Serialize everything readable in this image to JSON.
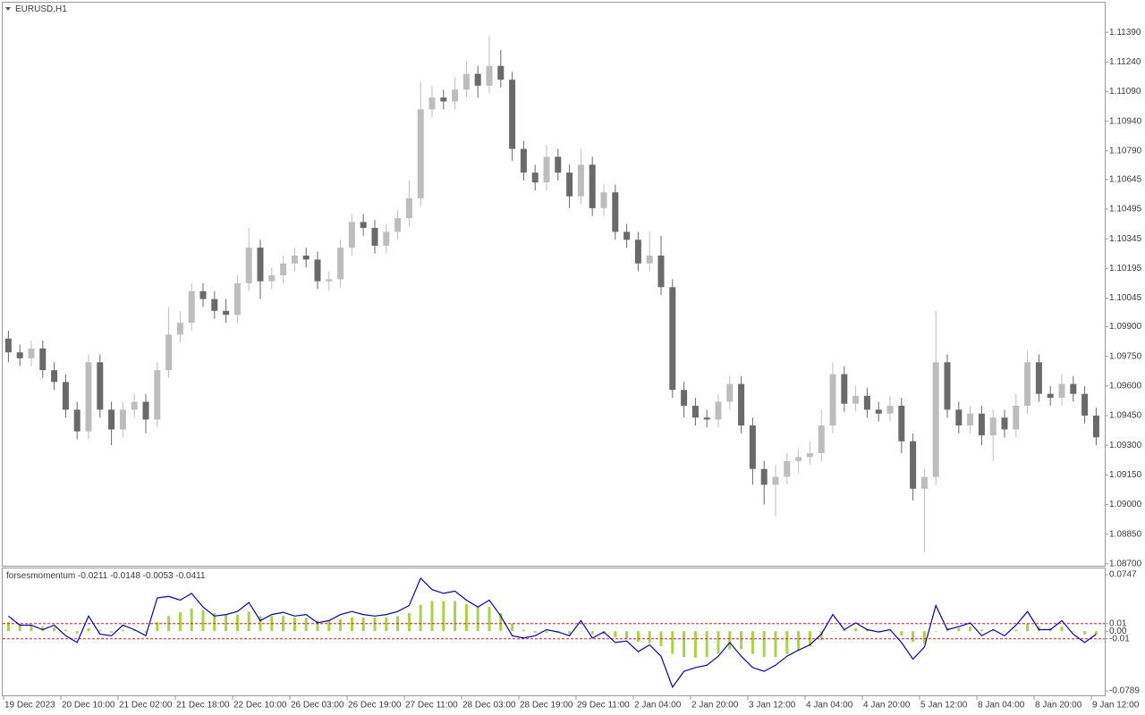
{
  "chart_data": [
    {
      "type": "candlestick",
      "title": "EURUSD,H1",
      "categories": [
        "19 Dec 2023",
        null,
        null,
        null,
        null,
        "20 Dec 10:00",
        null,
        null,
        null,
        null,
        "21 Dec 02:00",
        null,
        null,
        null,
        null,
        "21 Dec 18:00",
        null,
        null,
        null,
        null,
        "22 Dec 10:00",
        null,
        null,
        null,
        null,
        "26 Dec 03:00",
        null,
        null,
        null,
        null,
        "26 Dec 19:00",
        null,
        null,
        null,
        null,
        "27 Dec 11:00",
        null,
        null,
        null,
        null,
        "28 Dec 03:00",
        null,
        null,
        null,
        null,
        "28 Dec 19:00",
        null,
        null,
        null,
        null,
        "29 Dec 11:00",
        null,
        null,
        null,
        null,
        "2 Jan 04:00",
        null,
        null,
        null,
        null,
        "2 Jan 20:00",
        null,
        null,
        null,
        null,
        "3 Jan 12:00",
        null,
        null,
        null,
        null,
        "4 Jan 04:00",
        null,
        null,
        null,
        null,
        "4 Jan 20:00",
        null,
        null,
        null,
        null,
        "5 Jan 12:00",
        null,
        null,
        null,
        null,
        "8 Jan 04:00",
        null,
        null,
        null,
        null,
        "8 Jan 20:00",
        null,
        null,
        null,
        null,
        "9 Jan 12:00"
      ],
      "open": [
        1.0984,
        1.0977,
        1.0974,
        1.0979,
        1.0968,
        1.0962,
        1.0948,
        1.0937,
        1.0972,
        1.0948,
        1.0938,
        1.0948,
        1.0952,
        1.0943,
        1.0968,
        1.0986,
        1.0992,
        1.1008,
        1.1004,
        1.0998,
        1.0996,
        1.1012,
        1.103,
        1.1013,
        1.1016,
        1.1022,
        1.1026,
        1.1024,
        1.1013,
        1.1014,
        1.103,
        1.1043,
        1.104,
        1.1031,
        1.1038,
        1.1045,
        1.1055,
        1.11,
        1.1106,
        1.1104,
        1.111,
        1.1118,
        1.1112,
        1.1122,
        1.1115,
        1.108,
        1.1068,
        1.1063,
        1.1076,
        1.1068,
        1.1056,
        1.1072,
        1.105,
        1.1058,
        1.1038,
        1.1034,
        1.1022,
        1.1026,
        1.101,
        1.0958,
        1.095,
        1.0944,
        1.0943,
        1.0952,
        1.0961,
        1.094,
        1.0918,
        1.091,
        1.0914,
        1.0922,
        1.0924,
        1.0926,
        1.094,
        1.0966,
        1.0951,
        1.0955,
        1.0948,
        1.0946,
        1.095,
        1.0932,
        1.0908,
        1.0914,
        1.0972,
        1.0948,
        1.094,
        1.0946,
        1.0935,
        1.0944,
        1.0938,
        1.095,
        1.0972,
        1.0956,
        1.0954,
        1.0961,
        1.0956,
        1.0945
      ],
      "high": [
        1.0988,
        1.0981,
        1.0983,
        1.0983,
        1.0972,
        1.0966,
        1.0952,
        1.0976,
        1.0976,
        1.0952,
        1.0952,
        1.0956,
        1.0956,
        1.0972,
        1.1,
        1.0998,
        1.1012,
        1.1012,
        1.1008,
        1.1004,
        1.1016,
        1.104,
        1.1034,
        1.102,
        1.1026,
        1.103,
        1.103,
        1.1028,
        1.1018,
        1.1034,
        1.1047,
        1.1047,
        1.1044,
        1.1042,
        1.1049,
        1.1064,
        1.1114,
        1.1112,
        1.111,
        1.1116,
        1.1124,
        1.1122,
        1.1137,
        1.113,
        1.1119,
        1.1084,
        1.1072,
        1.1082,
        1.108,
        1.1072,
        1.108,
        1.1076,
        1.1062,
        1.1062,
        1.1042,
        1.1038,
        1.1038,
        1.1036,
        1.1014,
        1.0962,
        1.0954,
        1.0948,
        1.0956,
        1.0965,
        1.0965,
        1.0944,
        1.0922,
        1.092,
        1.0926,
        1.0928,
        1.0932,
        1.0948,
        1.0972,
        1.097,
        1.096,
        1.0959,
        1.0952,
        1.0955,
        1.0954,
        1.0936,
        1.0918,
        1.0998,
        1.0976,
        1.0952,
        1.095,
        1.095,
        1.0948,
        1.0948,
        1.0956,
        1.0978,
        1.0976,
        1.096,
        1.0966,
        1.0965,
        1.096,
        1.0949
      ],
      "low": [
        1.0972,
        1.097,
        1.097,
        1.0964,
        1.0958,
        1.0944,
        1.0933,
        1.0933,
        1.0944,
        1.093,
        1.0934,
        1.0944,
        1.0936,
        1.0939,
        1.0964,
        1.0982,
        1.0988,
        1.1,
        1.0994,
        1.0992,
        1.0992,
        1.1008,
        1.1004,
        1.1009,
        1.1012,
        1.1018,
        1.102,
        1.1009,
        1.1008,
        1.101,
        1.1026,
        1.1036,
        1.1027,
        1.1027,
        1.1034,
        1.1041,
        1.1051,
        1.1096,
        1.11,
        1.11,
        1.1106,
        1.1106,
        1.1108,
        1.1111,
        1.1074,
        1.1064,
        1.1059,
        1.1059,
        1.1064,
        1.105,
        1.1052,
        1.1046,
        1.1046,
        1.1034,
        1.103,
        1.1018,
        1.1018,
        1.1006,
        1.0954,
        1.0944,
        1.094,
        1.0939,
        1.0939,
        1.0948,
        1.0936,
        1.091,
        1.09,
        1.0894,
        1.091,
        1.0916,
        1.092,
        1.0922,
        1.0936,
        1.0947,
        1.0947,
        1.0944,
        1.0942,
        1.0942,
        1.0926,
        1.0902,
        1.0876,
        1.091,
        1.0944,
        1.0936,
        1.0936,
        1.093,
        1.0922,
        1.0934,
        1.0934,
        1.0946,
        1.0952,
        1.095,
        1.095,
        1.0952,
        1.0941,
        1.093
      ],
      "close": [
        1.0977,
        1.0974,
        1.0979,
        1.0968,
        1.0962,
        1.0948,
        1.0937,
        1.0972,
        1.0948,
        1.0938,
        1.0948,
        1.0952,
        1.0943,
        1.0968,
        1.0986,
        1.0992,
        1.1008,
        1.1004,
        1.0998,
        1.0996,
        1.1012,
        1.103,
        1.1013,
        1.1016,
        1.1022,
        1.1026,
        1.1024,
        1.1013,
        1.1014,
        1.103,
        1.1043,
        1.104,
        1.1031,
        1.1038,
        1.1045,
        1.1055,
        1.11,
        1.1106,
        1.1104,
        1.111,
        1.1118,
        1.1112,
        1.1122,
        1.1115,
        1.108,
        1.1068,
        1.1063,
        1.1076,
        1.1068,
        1.1056,
        1.1072,
        1.105,
        1.1058,
        1.1038,
        1.1034,
        1.1022,
        1.1026,
        1.101,
        1.0958,
        1.095,
        1.0944,
        1.0943,
        1.0952,
        1.0961,
        1.094,
        1.0918,
        1.091,
        1.0914,
        1.0922,
        1.0924,
        1.0926,
        1.094,
        1.0966,
        1.0951,
        1.0955,
        1.0948,
        1.0946,
        1.095,
        1.0932,
        1.0908,
        1.0914,
        1.0972,
        1.0948,
        1.094,
        1.0946,
        1.0935,
        1.0944,
        1.0938,
        1.095,
        1.0972,
        1.0956,
        1.0954,
        1.0961,
        1.0956,
        1.0945,
        1.0934
      ],
      "up_color": "#bdbdbd",
      "down_color": "#6a6a6a",
      "ylim": [
        1.0869,
        1.1154
      ],
      "yticks": [
        {
          "value": 1.1139,
          "label": "1.11390"
        },
        {
          "value": 1.1124,
          "label": "1.11240"
        },
        {
          "value": 1.1109,
          "label": "1.11090"
        },
        {
          "value": 1.1094,
          "label": "1.10940"
        },
        {
          "value": 1.1079,
          "label": "1.10790"
        },
        1.10645,
        1.10495,
        1.10345,
        1.10195,
        1.10045,
        {
          "value": 1.099,
          "label": "1.09900"
        },
        {
          "value": 1.0975,
          "label": "1.09750"
        },
        {
          "value": 1.096,
          "label": "1.09600"
        },
        {
          "value": 1.0945,
          "label": "1.09450"
        },
        {
          "value": 1.093,
          "label": "1.09300"
        },
        {
          "value": 1.0915,
          "label": "1.09150"
        },
        {
          "value": 1.09,
          "label": "1.09000"
        },
        {
          "value": 1.0885,
          "label": "1.08850"
        },
        {
          "value": 1.087,
          "label": "1.08700"
        }
      ]
    },
    {
      "type": "line",
      "title": "forsesmomentum -0.0211 -0.0148 -0.0053 -0.0411",
      "ylim": [
        -0.0848,
        0.083
      ],
      "yticks": [
        0.0747,
        0.01,
        {
          "value": 0,
          "label": "0.00"
        },
        -0.01,
        -0.0789
      ],
      "levels": [
        0.01,
        -0.01
      ],
      "level_color": "#d42020",
      "series": [
        {
          "type": "bar",
          "color": "#a8d43c",
          "values": [
            0.012,
            0.01,
            0.008,
            0.006,
            0.005,
            0.002,
            -0.003,
            0.004,
            0.002,
            -0.002,
            0.002,
            0.002,
            -0.002,
            0.012,
            0.02,
            0.025,
            0.03,
            0.028,
            0.024,
            0.022,
            0.022,
            0.026,
            0.02,
            0.02,
            0.02,
            0.018,
            0.018,
            0.014,
            0.014,
            0.016,
            0.018,
            0.018,
            0.018,
            0.018,
            0.02,
            0.024,
            0.035,
            0.04,
            0.04,
            0.04,
            0.036,
            0.032,
            0.032,
            0.024,
            0.01,
            0.002,
            -0.002,
            -0.002,
            -0.002,
            -0.004,
            0.0,
            -0.004,
            -0.004,
            -0.008,
            -0.01,
            -0.014,
            -0.016,
            -0.02,
            -0.03,
            -0.034,
            -0.035,
            -0.034,
            -0.03,
            -0.024,
            -0.024,
            -0.03,
            -0.034,
            -0.034,
            -0.03,
            -0.026,
            -0.02,
            -0.012,
            0.0,
            0.002,
            0.004,
            0.002,
            0.0,
            0.0,
            -0.006,
            -0.014,
            -0.016,
            0.0,
            0.004,
            0.004,
            0.006,
            0.002,
            0.002,
            0.0,
            0.002,
            0.01,
            0.006,
            0.004,
            0.006,
            0.0,
            -0.004,
            -0.004
          ]
        },
        {
          "type": "line",
          "color": "#0000cc",
          "values": [
            0.02,
            0.008,
            0.008,
            0.002,
            0.008,
            -0.006,
            -0.015,
            0.02,
            -0.004,
            -0.006,
            0.008,
            0.002,
            -0.006,
            0.044,
            0.046,
            0.041,
            0.05,
            0.032,
            0.02,
            0.022,
            0.026,
            0.038,
            0.014,
            0.022,
            0.025,
            0.02,
            0.022,
            0.011,
            0.014,
            0.022,
            0.026,
            0.022,
            0.02,
            0.022,
            0.026,
            0.034,
            0.07,
            0.055,
            0.05,
            0.053,
            0.041,
            0.032,
            0.041,
            0.02,
            -0.006,
            -0.009,
            -0.006,
            0.002,
            -0.001,
            -0.006,
            0.014,
            -0.009,
            -0.001,
            -0.015,
            -0.013,
            -0.027,
            -0.018,
            -0.033,
            -0.074,
            -0.053,
            -0.048,
            -0.045,
            -0.033,
            -0.015,
            -0.033,
            -0.048,
            -0.053,
            -0.045,
            -0.033,
            -0.025,
            -0.018,
            -0.004,
            0.022,
            0.002,
            0.011,
            0.002,
            -0.001,
            0.002,
            -0.015,
            -0.037,
            -0.021,
            0.034,
            0.002,
            0.006,
            0.011,
            -0.006,
            0.002,
            -0.006,
            0.008,
            0.026,
            0.002,
            0.002,
            0.014,
            -0.004,
            -0.015,
            -0.004
          ]
        }
      ]
    }
  ]
}
